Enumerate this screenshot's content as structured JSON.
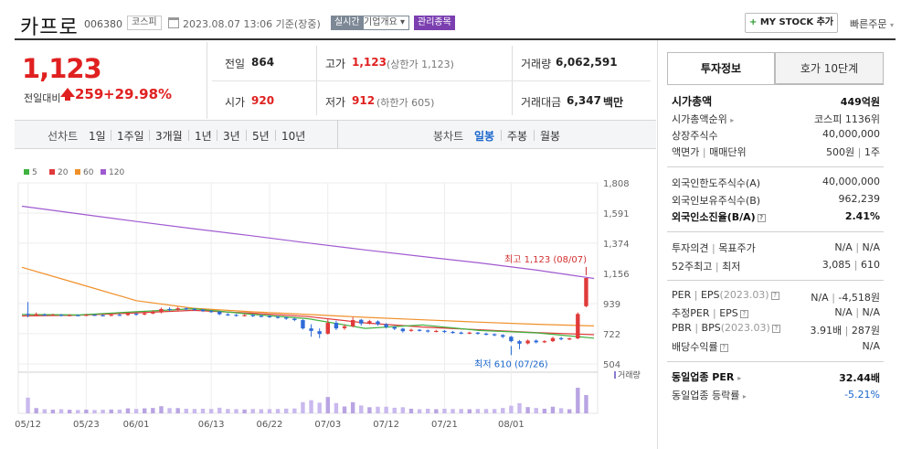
{
  "header": {
    "name": "카프로",
    "code": "006380",
    "market": "코스피",
    "datetime": "2023.08.07 13:06 기준(장중)",
    "badge_realtime": "실시간",
    "badge_corp": "기업개요",
    "badge_manage": "관리종목",
    "mystock_label": "MY STOCK 추가",
    "quick_order": "빠른주문"
  },
  "quote": {
    "price": "1,123",
    "change_label": "전일대비",
    "change": "259",
    "change_pct": "+29.98%",
    "prev_label": "전일",
    "prev": "864",
    "open_label": "시가",
    "open": "920",
    "high_label": "고가",
    "high": "1,123",
    "high_note": "(상한가 1,123)",
    "low_label": "저가",
    "low": "912",
    "low_note": "(하한가 605)",
    "volume_label": "거래량",
    "volume": "6,062,591",
    "amount_label": "거래대금",
    "amount": "6,347",
    "amount_unit": "백만"
  },
  "toolbar": {
    "line_chart": "선차트",
    "periods": [
      "1일",
      "1주일",
      "3개월",
      "1년",
      "3년",
      "5년",
      "10년"
    ],
    "candle_chart": "봉차트",
    "candle_periods": [
      "일봉",
      "주봉",
      "월봉"
    ],
    "active_candle": "일봉"
  },
  "chart_data": {
    "type": "candlestick",
    "legend": [
      "5",
      "20",
      "60",
      "120"
    ],
    "ma_colors": [
      "#3fb23f",
      "#e03a3a",
      "#f0902a",
      "#a05ad0"
    ],
    "y_ticks": [
      1808,
      1591,
      1374,
      1156,
      939,
      722,
      504
    ],
    "ylim": [
      504,
      1808
    ],
    "x_ticks": [
      "05/12",
      "05/23",
      "06/01",
      "06/13",
      "06/22",
      "07/03",
      "07/12",
      "07/21",
      "08/01"
    ],
    "annotation_high": "최고 1,123 (08/07)",
    "annotation_low": "최저 610 (07/26)",
    "volume_label": "거래량",
    "candles": [
      {
        "o": 865,
        "c": 860,
        "h": 950,
        "l": 840
      },
      {
        "o": 855,
        "c": 862,
        "h": 875,
        "l": 848
      },
      {
        "o": 860,
        "c": 856,
        "h": 868,
        "l": 850
      },
      {
        "o": 857,
        "c": 858,
        "h": 866,
        "l": 851
      },
      {
        "o": 858,
        "c": 852,
        "h": 864,
        "l": 846
      },
      {
        "o": 852,
        "c": 856,
        "h": 862,
        "l": 848
      },
      {
        "o": 856,
        "c": 853,
        "h": 860,
        "l": 848
      },
      {
        "o": 853,
        "c": 858,
        "h": 864,
        "l": 849
      },
      {
        "o": 858,
        "c": 855,
        "h": 862,
        "l": 850
      },
      {
        "o": 855,
        "c": 852,
        "h": 860,
        "l": 846
      },
      {
        "o": 852,
        "c": 858,
        "h": 864,
        "l": 848
      },
      {
        "o": 858,
        "c": 856,
        "h": 866,
        "l": 851
      },
      {
        "o": 856,
        "c": 866,
        "h": 875,
        "l": 850
      },
      {
        "o": 866,
        "c": 860,
        "h": 872,
        "l": 852
      },
      {
        "o": 860,
        "c": 868,
        "h": 880,
        "l": 855
      },
      {
        "o": 868,
        "c": 875,
        "h": 890,
        "l": 862
      },
      {
        "o": 875,
        "c": 900,
        "h": 910,
        "l": 868
      },
      {
        "o": 900,
        "c": 895,
        "h": 912,
        "l": 885
      },
      {
        "o": 895,
        "c": 905,
        "h": 915,
        "l": 888
      },
      {
        "o": 905,
        "c": 900,
        "h": 912,
        "l": 890
      },
      {
        "o": 900,
        "c": 896,
        "h": 908,
        "l": 888
      },
      {
        "o": 896,
        "c": 885,
        "h": 900,
        "l": 878
      },
      {
        "o": 885,
        "c": 880,
        "h": 892,
        "l": 872
      },
      {
        "o": 880,
        "c": 862,
        "h": 885,
        "l": 855
      },
      {
        "o": 862,
        "c": 858,
        "h": 870,
        "l": 850
      },
      {
        "o": 858,
        "c": 852,
        "h": 864,
        "l": 845
      },
      {
        "o": 852,
        "c": 856,
        "h": 862,
        "l": 846
      },
      {
        "o": 856,
        "c": 850,
        "h": 862,
        "l": 842
      },
      {
        "o": 850,
        "c": 848,
        "h": 858,
        "l": 840
      },
      {
        "o": 848,
        "c": 844,
        "h": 855,
        "l": 836
      },
      {
        "o": 844,
        "c": 838,
        "h": 850,
        "l": 830
      },
      {
        "o": 838,
        "c": 830,
        "h": 845,
        "l": 822
      },
      {
        "o": 830,
        "c": 820,
        "h": 836,
        "l": 812
      },
      {
        "o": 820,
        "c": 760,
        "h": 826,
        "l": 752
      },
      {
        "o": 760,
        "c": 742,
        "h": 790,
        "l": 700
      },
      {
        "o": 740,
        "c": 720,
        "h": 760,
        "l": 690
      },
      {
        "o": 722,
        "c": 800,
        "h": 830,
        "l": 715
      },
      {
        "o": 800,
        "c": 760,
        "h": 815,
        "l": 748
      },
      {
        "o": 762,
        "c": 775,
        "h": 790,
        "l": 750
      },
      {
        "o": 775,
        "c": 820,
        "h": 842,
        "l": 768
      },
      {
        "o": 822,
        "c": 795,
        "h": 828,
        "l": 780
      },
      {
        "o": 795,
        "c": 812,
        "h": 822,
        "l": 788
      },
      {
        "o": 810,
        "c": 790,
        "h": 818,
        "l": 780
      },
      {
        "o": 790,
        "c": 770,
        "h": 798,
        "l": 760
      },
      {
        "o": 770,
        "c": 758,
        "h": 778,
        "l": 748
      },
      {
        "o": 758,
        "c": 740,
        "h": 764,
        "l": 730
      },
      {
        "o": 742,
        "c": 750,
        "h": 758,
        "l": 736
      },
      {
        "o": 750,
        "c": 745,
        "h": 756,
        "l": 738
      },
      {
        "o": 745,
        "c": 738,
        "h": 752,
        "l": 730
      },
      {
        "o": 738,
        "c": 742,
        "h": 750,
        "l": 732
      },
      {
        "o": 742,
        "c": 735,
        "h": 748,
        "l": 726
      },
      {
        "o": 735,
        "c": 730,
        "h": 742,
        "l": 722
      },
      {
        "o": 730,
        "c": 726,
        "h": 738,
        "l": 718
      },
      {
        "o": 726,
        "c": 730,
        "h": 736,
        "l": 718
      },
      {
        "o": 730,
        "c": 722,
        "h": 734,
        "l": 714
      },
      {
        "o": 722,
        "c": 718,
        "h": 730,
        "l": 710
      },
      {
        "o": 718,
        "c": 712,
        "h": 724,
        "l": 704
      },
      {
        "o": 712,
        "c": 700,
        "h": 718,
        "l": 690
      },
      {
        "o": 700,
        "c": 668,
        "h": 706,
        "l": 660
      },
      {
        "o": 668,
        "c": 650,
        "h": 676,
        "l": 610
      },
      {
        "o": 652,
        "c": 672,
        "h": 680,
        "l": 645
      },
      {
        "o": 672,
        "c": 660,
        "h": 680,
        "l": 652
      },
      {
        "o": 660,
        "c": 668,
        "h": 676,
        "l": 654
      },
      {
        "o": 668,
        "c": 690,
        "h": 700,
        "l": 662
      },
      {
        "o": 690,
        "c": 682,
        "h": 700,
        "l": 674
      },
      {
        "o": 682,
        "c": 688,
        "h": 694,
        "l": 676
      },
      {
        "o": 688,
        "c": 864,
        "h": 875,
        "l": 682
      },
      {
        "o": 920,
        "c": 1123,
        "h": 1123,
        "l": 912
      }
    ],
    "ma120": [
      1640,
      1585,
      1530,
      1478,
      1428,
      1375,
      1325,
      1278,
      1232,
      1180,
      1120
    ],
    "ma60": [
      1200,
      1080,
      960,
      905,
      880,
      860,
      840,
      822,
      805,
      790,
      778
    ],
    "ma20": [
      850,
      855,
      872,
      890,
      870,
      845,
      800,
      770,
      750,
      730,
      715
    ],
    "ma5": [
      860,
      857,
      880,
      902,
      862,
      830,
      760,
      785,
      745,
      728,
      690
    ]
  },
  "info": {
    "tab_invest": "투자정보",
    "tab_hoga": "호가 10단계",
    "market_cap_label": "시가총액",
    "market_cap": "449억원",
    "market_cap_rank_label": "시가총액순위",
    "market_cap_rank": "코스피 1136위",
    "shares_label": "상장주식수",
    "shares": "40,000,000",
    "par_label": "액면가",
    "trade_unit_label": "매매단위",
    "par": "500원",
    "trade_unit": "1주",
    "foreign_limit_label": "외국인한도주식수(A)",
    "foreign_limit": "40,000,000",
    "foreign_hold_label": "외국인보유주식수(B)",
    "foreign_hold": "962,239",
    "foreign_ratio_label": "외국인소진율(B/A)",
    "foreign_ratio": "2.41%",
    "opinion_label": "투자의견",
    "target_label": "목표주가",
    "opinion": "N/A",
    "target": "N/A",
    "w52_high_label": "52주최고",
    "w52_low_label": "최저",
    "w52_high": "3,085",
    "w52_low": "610",
    "per_label": "PER",
    "eps_label": "EPS",
    "per_date": "(2023.03)",
    "per": "N/A",
    "eps": "-4,518원",
    "est_per_label": "추정PER",
    "est_eps_label": "EPS",
    "est_per": "N/A",
    "est_eps": "N/A",
    "pbr_label": "PBR",
    "bps_label": "BPS",
    "pbr_date": "(2023.03)",
    "pbr": "3.91배",
    "bps": "287원",
    "div_label": "배당수익률",
    "div": "N/A",
    "industry_per_label": "동일업종 PER",
    "industry_per": "32.44배",
    "industry_rate_label": "동일업종 등락률",
    "industry_rate": "-5.21%"
  }
}
